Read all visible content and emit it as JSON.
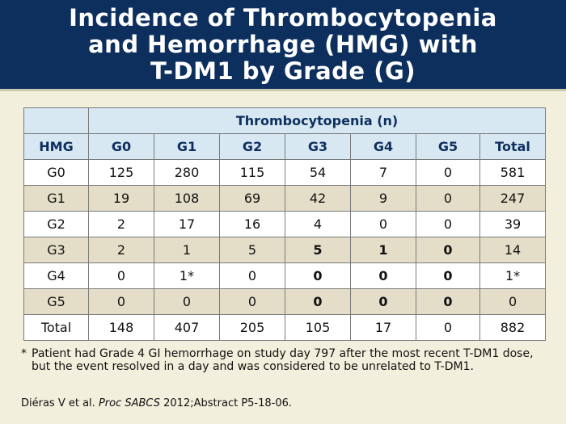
{
  "header": {
    "title": "Incidence of Thrombocytopenia\nand Hemorrhage (HMG) with\nT-DM1 by Grade (G)"
  },
  "table": {
    "super_header": "Thrombocytopenia (n)",
    "row_header_label": "HMG",
    "columns": [
      "G0",
      "G1",
      "G2",
      "G3",
      "G4",
      "G5",
      "Total"
    ],
    "rows": [
      {
        "label": "G0",
        "cells": [
          "125",
          "280",
          "115",
          "54",
          "7",
          "0",
          "581"
        ]
      },
      {
        "label": "G1",
        "cells": [
          "19",
          "108",
          "69",
          "42",
          "9",
          "0",
          "247"
        ]
      },
      {
        "label": "G2",
        "cells": [
          "2",
          "17",
          "16",
          "4",
          "0",
          "0",
          "39"
        ]
      },
      {
        "label": "G3",
        "cells": [
          "2",
          "1",
          "5",
          "5",
          "1",
          "0",
          "14"
        ]
      },
      {
        "label": "G4",
        "cells": [
          "0",
          "1*",
          "0",
          "0",
          "0",
          "0",
          "1*"
        ]
      },
      {
        "label": "G5",
        "cells": [
          "0",
          "0",
          "0",
          "0",
          "0",
          "0",
          "0"
        ]
      },
      {
        "label": "Total",
        "cells": [
          "148",
          "407",
          "205",
          "105",
          "17",
          "0",
          "882"
        ]
      }
    ]
  },
  "footnote": {
    "mark": "*",
    "text": "Patient had Grade 4 GI hemorrhage on study day 797 after the most recent T-DM1 dose, but the event resolved in a day and was considered to be unrelated to T-DM1."
  },
  "citation": {
    "authors": "Diéras V et al.",
    "journal": "Proc SABCS",
    "details": "2012;Abstract P5-18-06."
  }
}
